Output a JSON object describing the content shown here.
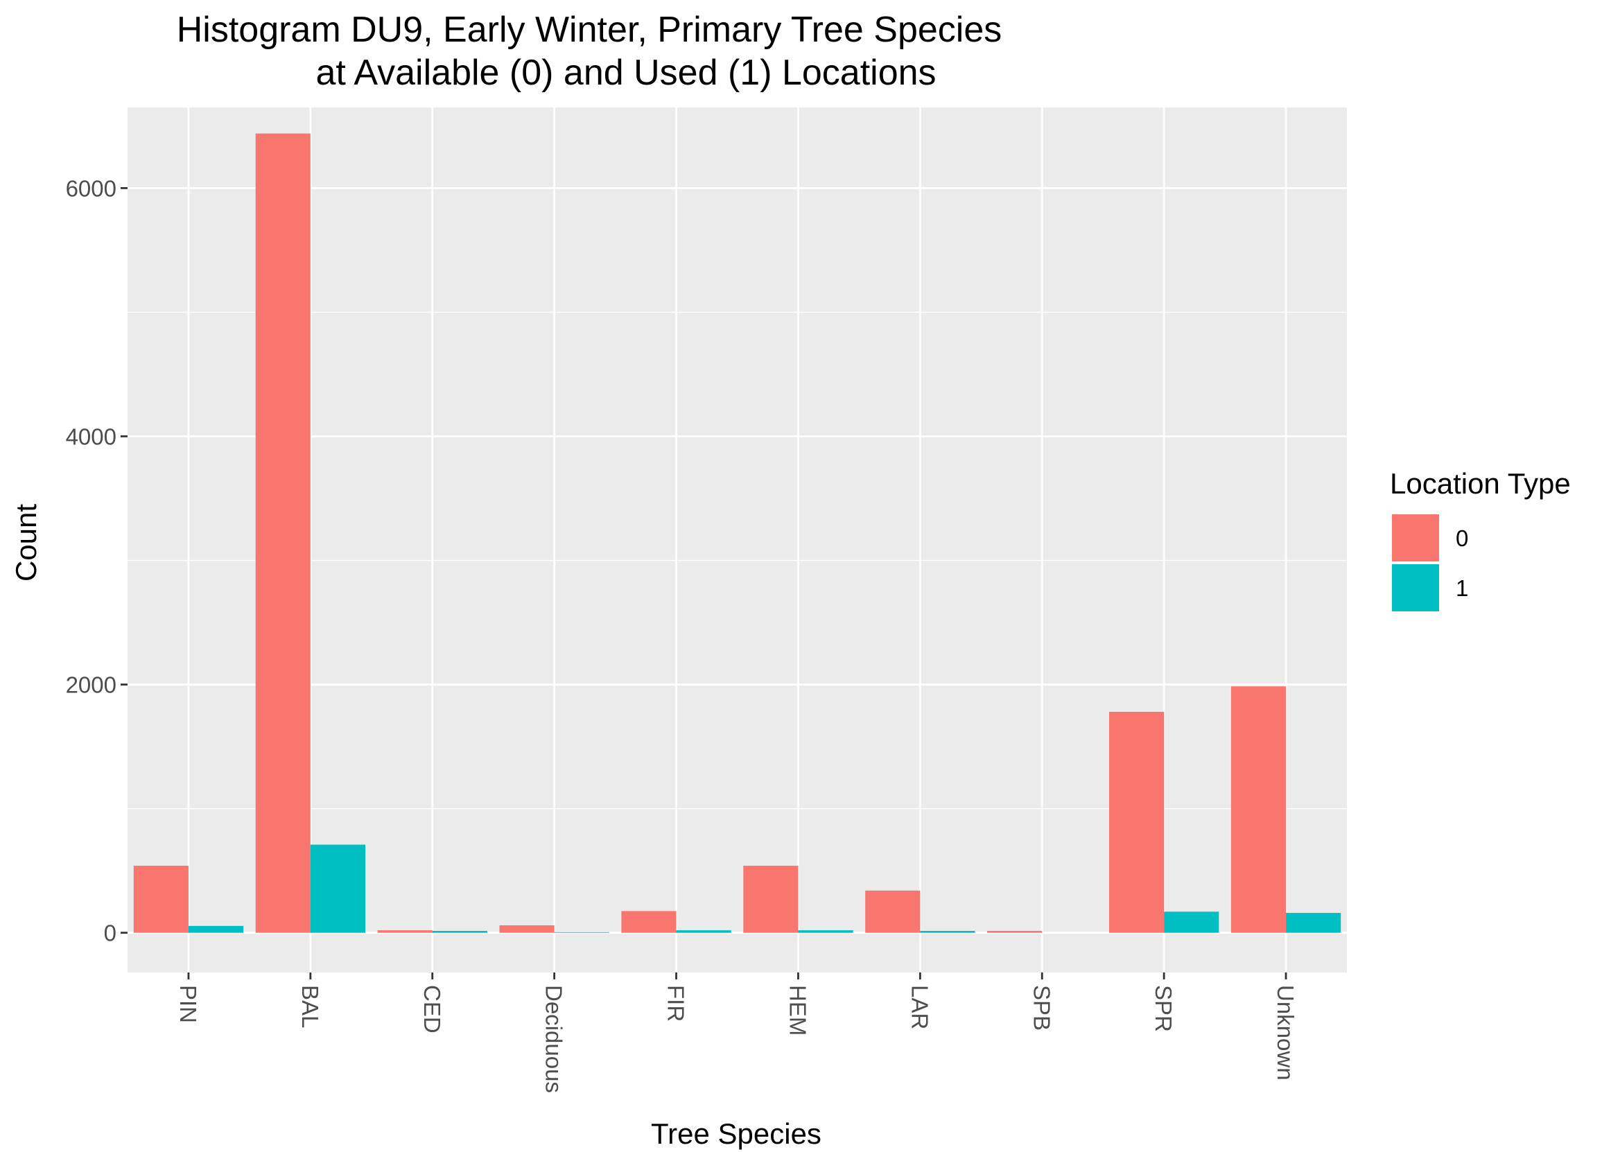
{
  "chart_data": {
    "type": "bar",
    "title": "Histogram DU9, Early Winter, Primary Tree Species",
    "subtitle": "at Available (0) and Used (1) Locations",
    "xlabel": "Tree Species",
    "ylabel": "Count",
    "categories": [
      "PIN",
      "BAL",
      "CED",
      "Deciduous",
      "FIR",
      "HEM",
      "LAR",
      "SPB",
      "SPR",
      "Unknown"
    ],
    "series": [
      {
        "name": "0",
        "color": "#F8766D",
        "values": [
          540,
          6440,
          20,
          60,
          175,
          540,
          340,
          15,
          1780,
          1985
        ]
      },
      {
        "name": "1",
        "color": "#00BFC4",
        "values": [
          55,
          710,
          15,
          5,
          20,
          20,
          15,
          0,
          170,
          160
        ]
      }
    ],
    "ylim": [
      -320,
      6650
    ],
    "yticks": [
      0,
      2000,
      4000,
      6000
    ],
    "grid": true,
    "legend": {
      "title": "Location Type",
      "position": "right"
    },
    "panel_background": "#EBEBEB",
    "grid_color": "#FFFFFF"
  }
}
